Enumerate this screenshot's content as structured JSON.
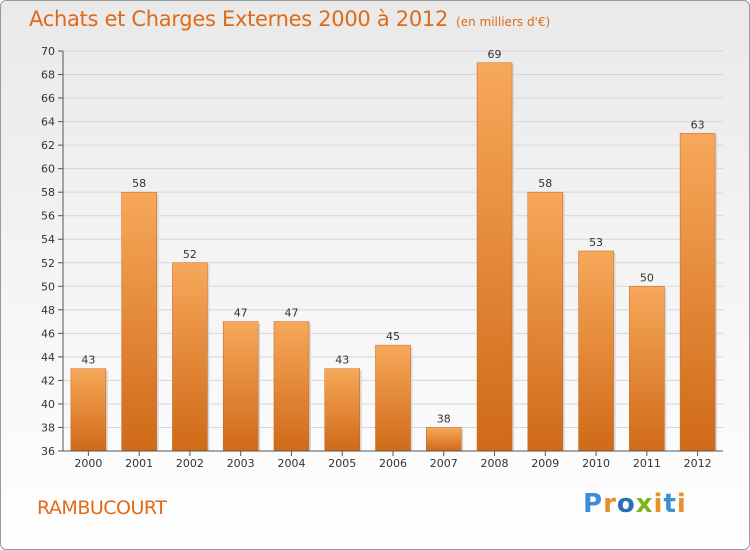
{
  "title": "Achats et Charges Externes 2000 à 2012",
  "subtitle": "(en milliers d'€)",
  "commune": "RAMBUCOURT",
  "logo": {
    "letters": [
      "P",
      "r",
      "o",
      "x",
      "i",
      "t",
      "i"
    ],
    "colors": [
      "#3a8fd6",
      "#e8912b",
      "#2b6fb8",
      "#7ab51d",
      "#e8912b",
      "#3a8fd6",
      "#e8912b"
    ]
  },
  "colors": {
    "title": "#e06a17",
    "bar_top": "#f7a85a",
    "bar_bottom": "#cf6a18"
  },
  "chart_data": {
    "type": "bar",
    "categories": [
      "2000",
      "2001",
      "2002",
      "2003",
      "2004",
      "2005",
      "2006",
      "2007",
      "2008",
      "2009",
      "2010",
      "2011",
      "2012"
    ],
    "values": [
      43,
      58,
      52,
      47,
      47,
      43,
      45,
      38,
      69,
      58,
      53,
      50,
      63
    ],
    "title": "Achats et Charges Externes 2000 à 2012",
    "ylim": [
      36,
      70
    ],
    "yticks": [
      36,
      38,
      40,
      42,
      44,
      46,
      48,
      50,
      52,
      54,
      56,
      58,
      60,
      62,
      64,
      66,
      68,
      70
    ],
    "grid": true
  }
}
